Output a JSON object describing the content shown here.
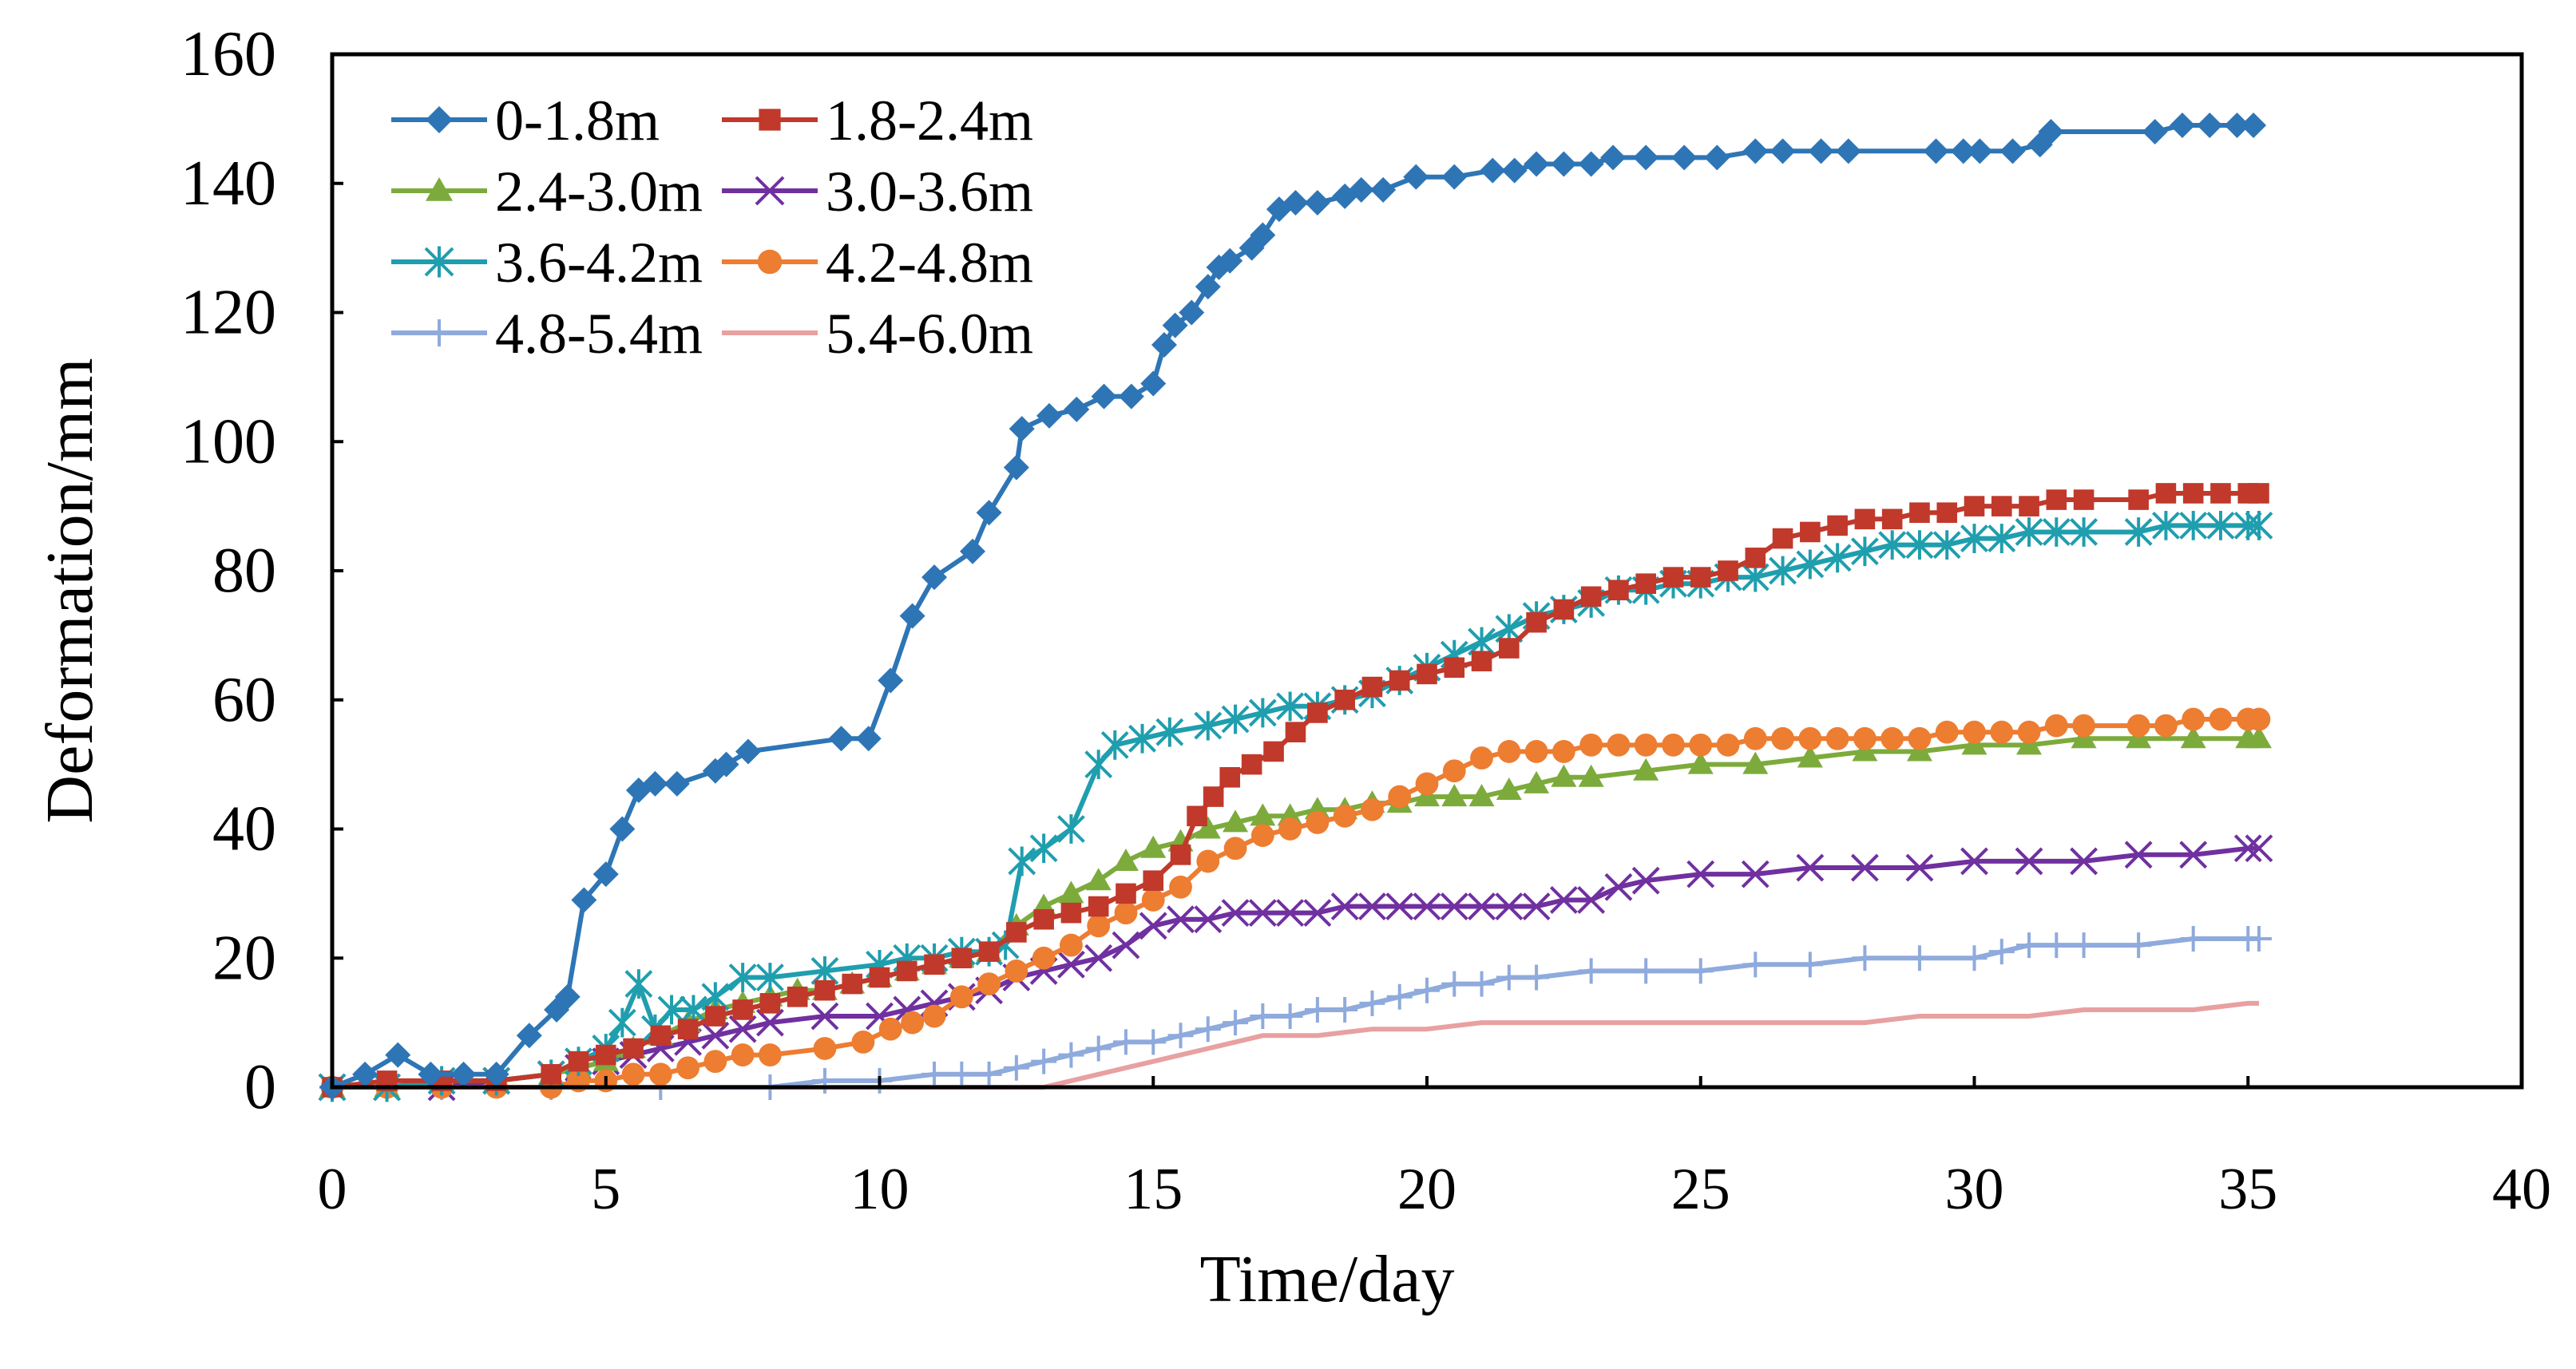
{
  "chart_data": {
    "type": "line",
    "title": "",
    "xlabel": "Time/day",
    "ylabel": "Deformation/mm",
    "xlim": [
      0,
      40
    ],
    "ylim": [
      0,
      160
    ],
    "xticks": [
      "0",
      "5",
      "10",
      "15",
      "20",
      "25",
      "30",
      "35",
      "40"
    ],
    "yticks": [
      "0",
      "20",
      "40",
      "60",
      "80",
      "100",
      "120",
      "140",
      "160"
    ],
    "legend_position": "top-left",
    "grid": false,
    "series": [
      {
        "name": "0-1.8m",
        "color": "#2E75B6",
        "marker": "diamond",
        "x": [
          0,
          0.6,
          1.2,
          1.8,
          2.4,
          3.0,
          3.6,
          4.1,
          4.3,
          4.6,
          5.0,
          5.3,
          5.6,
          5.9,
          6.3,
          7.0,
          7.2,
          7.6,
          9.3,
          9.8,
          10.2,
          10.6,
          11.0,
          11.7,
          12.0,
          12.5,
          12.6,
          13.1,
          13.6,
          14.1,
          14.6,
          15.0,
          15.2,
          15.4,
          15.7,
          16.0,
          16.2,
          16.4,
          16.8,
          17.0,
          17.3,
          17.6,
          18.0,
          18.5,
          18.8,
          19.2,
          19.8,
          20.5,
          21.2,
          21.6,
          22.0,
          22.5,
          23.0,
          23.4,
          24.0,
          24.7,
          25.3,
          26.0,
          26.5,
          27.2,
          27.7,
          29.3,
          29.8,
          30.1,
          30.7,
          31.2,
          31.4,
          33.3,
          33.8,
          34.3,
          34.8,
          35.1
        ],
        "y": [
          0,
          2,
          5,
          2,
          2,
          2,
          8,
          12,
          14,
          29,
          33,
          40,
          46,
          47,
          47,
          49,
          50,
          52,
          54,
          54,
          63,
          73,
          79,
          83,
          89,
          96,
          102,
          104,
          105,
          107,
          107,
          109,
          115,
          118,
          120,
          124,
          127,
          128,
          130,
          132,
          136,
          137,
          137,
          138,
          139,
          139,
          141,
          141,
          142,
          142,
          143,
          143,
          143,
          144,
          144,
          144,
          144,
          145,
          145,
          145,
          145,
          145,
          145,
          145,
          145,
          146,
          148,
          148,
          149,
          149,
          149,
          149
        ]
      },
      {
        "name": "1.8-2.4m",
        "color": "#C0392B",
        "marker": "square",
        "x": [
          0,
          1,
          2,
          3,
          4,
          4.5,
          5,
          5.5,
          6,
          6.5,
          7,
          7.5,
          8,
          8.5,
          9,
          9.5,
          10,
          10.5,
          11,
          11.5,
          12,
          12.5,
          13,
          13.5,
          14,
          14.5,
          15,
          15.5,
          15.8,
          16.1,
          16.4,
          16.8,
          17.2,
          17.6,
          18,
          18.5,
          19,
          19.5,
          20,
          20.5,
          21,
          21.5,
          22,
          22.5,
          23,
          23.5,
          24,
          24.5,
          25,
          25.5,
          26,
          26.5,
          27,
          27.5,
          28,
          28.5,
          29,
          29.5,
          30,
          30.5,
          31,
          31.5,
          32,
          33,
          33.5,
          34,
          34.5,
          35,
          35.2
        ],
        "y": [
          0,
          1,
          1,
          1,
          2,
          4,
          5,
          6,
          8,
          9,
          11,
          12,
          13,
          14,
          15,
          16,
          17,
          18,
          19,
          20,
          21,
          24,
          26,
          27,
          28,
          30,
          32,
          36,
          42,
          45,
          48,
          50,
          52,
          55,
          58,
          60,
          62,
          63,
          64,
          65,
          66,
          68,
          72,
          74,
          76,
          77,
          78,
          79,
          79,
          80,
          82,
          85,
          86,
          87,
          88,
          88,
          89,
          89,
          90,
          90,
          90,
          91,
          91,
          91,
          92,
          92,
          92,
          92,
          92
        ]
      },
      {
        "name": "2.4-3.0m",
        "color": "#7CAB3C",
        "marker": "triangle",
        "x": [
          0,
          1,
          2,
          3,
          4,
          4.5,
          5,
          5.5,
          6,
          6.5,
          7,
          7.5,
          8,
          8.5,
          9,
          9.5,
          10,
          10.5,
          11,
          11.5,
          12,
          12.5,
          13,
          13.5,
          14,
          14.5,
          15,
          15.5,
          16,
          16.5,
          17,
          17.5,
          18,
          18.5,
          19,
          19.5,
          20,
          20.5,
          21,
          21.5,
          22,
          22.5,
          23,
          24,
          25,
          26,
          27,
          28,
          29,
          30,
          31,
          32,
          33,
          34,
          35,
          35.2
        ],
        "y": [
          0,
          0,
          1,
          1,
          2,
          3,
          4,
          6,
          8,
          10,
          12,
          13,
          14,
          15,
          15,
          16,
          17,
          18,
          19,
          20,
          21,
          25,
          28,
          30,
          32,
          35,
          37,
          38,
          40,
          41,
          42,
          42,
          43,
          43,
          44,
          44,
          45,
          45,
          45,
          46,
          47,
          48,
          48,
          49,
          50,
          50,
          51,
          52,
          52,
          53,
          53,
          54,
          54,
          54,
          54,
          54
        ]
      },
      {
        "name": "3.0-3.6m",
        "color": "#7030A0",
        "marker": "x",
        "x": [
          0,
          1,
          2,
          3,
          4,
          4.5,
          5,
          5.5,
          6,
          6.5,
          7,
          7.5,
          8,
          9,
          10,
          10.5,
          11,
          11.5,
          12,
          12.5,
          13,
          13.5,
          14,
          14.5,
          15,
          15.5,
          16,
          16.5,
          17,
          17.5,
          18,
          18.5,
          19,
          19.5,
          20,
          20.5,
          21,
          21.5,
          22,
          22.5,
          23,
          23.5,
          24,
          25,
          26,
          27,
          28,
          29,
          30,
          31,
          32,
          33,
          34,
          35,
          35.2
        ],
        "y": [
          0,
          0,
          0,
          1,
          2,
          3,
          4,
          5,
          6,
          7,
          8,
          9,
          10,
          11,
          11,
          12,
          13,
          14,
          15,
          17,
          18,
          19,
          20,
          22,
          25,
          26,
          26,
          27,
          27,
          27,
          27,
          28,
          28,
          28,
          28,
          28,
          28,
          28,
          28,
          29,
          29,
          31,
          32,
          33,
          33,
          34,
          34,
          34,
          35,
          35,
          35,
          36,
          36,
          37,
          37
        ]
      },
      {
        "name": "3.6-4.2m",
        "color": "#1F9EAE",
        "marker": "asterisk",
        "x": [
          0,
          1,
          2,
          3,
          4,
          4.5,
          5,
          5.3,
          5.6,
          5.9,
          6.2,
          6.6,
          7,
          7.5,
          8,
          9,
          10,
          10.5,
          11,
          11.5,
          12,
          12.3,
          12.6,
          13,
          13.5,
          14,
          14.3,
          14.8,
          15.3,
          16,
          16.5,
          17,
          17.5,
          18,
          18.5,
          19,
          19.5,
          20,
          20.5,
          21,
          21.5,
          22,
          22.5,
          23,
          23.5,
          24,
          24.5,
          25,
          25.5,
          26,
          26.5,
          27,
          27.5,
          28,
          28.5,
          29,
          29.5,
          30,
          30.5,
          31,
          31.5,
          32,
          33,
          33.5,
          34,
          34.5,
          35,
          35.2
        ],
        "y": [
          0,
          0,
          1,
          1,
          2,
          4,
          6,
          10,
          16,
          9,
          12,
          12,
          14,
          17,
          17,
          18,
          19,
          20,
          20,
          21,
          21,
          22,
          35,
          37,
          40,
          50,
          53,
          54,
          55,
          56,
          57,
          58,
          59,
          59,
          60,
          61,
          63,
          65,
          67,
          69,
          71,
          73,
          74,
          75,
          77,
          77,
          78,
          78,
          79,
          79,
          80,
          81,
          82,
          83,
          84,
          84,
          84,
          85,
          85,
          86,
          86,
          86,
          86,
          87,
          87,
          87,
          87,
          87
        ]
      },
      {
        "name": "4.2-4.8m",
        "color": "#ED7D31",
        "marker": "circle",
        "x": [
          0,
          1,
          2,
          3,
          4,
          4.5,
          5,
          5.5,
          6,
          6.5,
          7,
          7.5,
          8,
          9,
          9.7,
          10.2,
          10.6,
          11,
          11.5,
          12,
          12.5,
          13,
          13.5,
          14,
          14.5,
          15,
          15.5,
          16,
          16.5,
          17,
          17.5,
          18,
          18.5,
          19,
          19.5,
          20,
          20.5,
          21,
          21.5,
          22,
          22.5,
          23,
          23.5,
          24,
          24.5,
          25,
          25.5,
          26,
          26.5,
          27,
          27.5,
          28,
          28.5,
          29,
          29.5,
          30,
          30.5,
          31,
          31.5,
          32,
          33,
          33.5,
          34,
          34.5,
          35,
          35.2
        ],
        "y": [
          0,
          0,
          0,
          0,
          0,
          1,
          1,
          2,
          2,
          3,
          4,
          5,
          5,
          6,
          7,
          9,
          10,
          11,
          14,
          16,
          18,
          20,
          22,
          25,
          27,
          29,
          31,
          35,
          37,
          39,
          40,
          41,
          42,
          43,
          45,
          47,
          49,
          51,
          52,
          52,
          52,
          53,
          53,
          53,
          53,
          53,
          53,
          54,
          54,
          54,
          54,
          54,
          54,
          54,
          55,
          55,
          55,
          55,
          56,
          56,
          56,
          56,
          57,
          57,
          57,
          57
        ]
      },
      {
        "name": "4.8-5.4m",
        "color": "#8FAADC",
        "marker": "plus",
        "x": [
          0,
          2,
          4,
          6,
          8,
          9,
          10,
          11,
          11.5,
          12,
          12.5,
          13,
          13.5,
          14,
          14.5,
          15,
          15.5,
          16,
          16.5,
          17,
          17.5,
          18,
          18.5,
          19,
          19.5,
          20,
          20.5,
          21,
          21.5,
          22,
          23,
          24,
          25,
          26,
          27,
          28,
          29,
          30,
          30.5,
          31,
          31.5,
          32,
          33,
          34,
          35,
          35.2
        ],
        "y": [
          0,
          0,
          0,
          0,
          0,
          1,
          1,
          2,
          2,
          2,
          3,
          4,
          5,
          6,
          7,
          7,
          8,
          9,
          10,
          11,
          11,
          12,
          12,
          13,
          14,
          15,
          16,
          16,
          17,
          17,
          18,
          18,
          18,
          19,
          19,
          20,
          20,
          20,
          21,
          22,
          22,
          22,
          22,
          23,
          23,
          23
        ]
      },
      {
        "name": "5.4-6.0m",
        "color": "#E8A0A0",
        "marker": "none",
        "x": [
          0,
          4,
          8,
          10,
          11,
          12,
          12.5,
          13,
          13.5,
          14,
          14.5,
          15,
          15.5,
          16,
          16.5,
          17,
          18,
          19,
          20,
          21,
          22,
          23,
          24,
          25,
          26,
          27,
          28,
          29,
          30,
          31,
          32,
          33,
          34,
          35,
          35.2
        ],
        "y": [
          0,
          0,
          0,
          0,
          0,
          0,
          0,
          0,
          1,
          2,
          3,
          4,
          5,
          6,
          7,
          8,
          8,
          9,
          9,
          10,
          10,
          10,
          10,
          10,
          10,
          10,
          10,
          11,
          11,
          11,
          12,
          12,
          12,
          13,
          13
        ]
      }
    ]
  }
}
